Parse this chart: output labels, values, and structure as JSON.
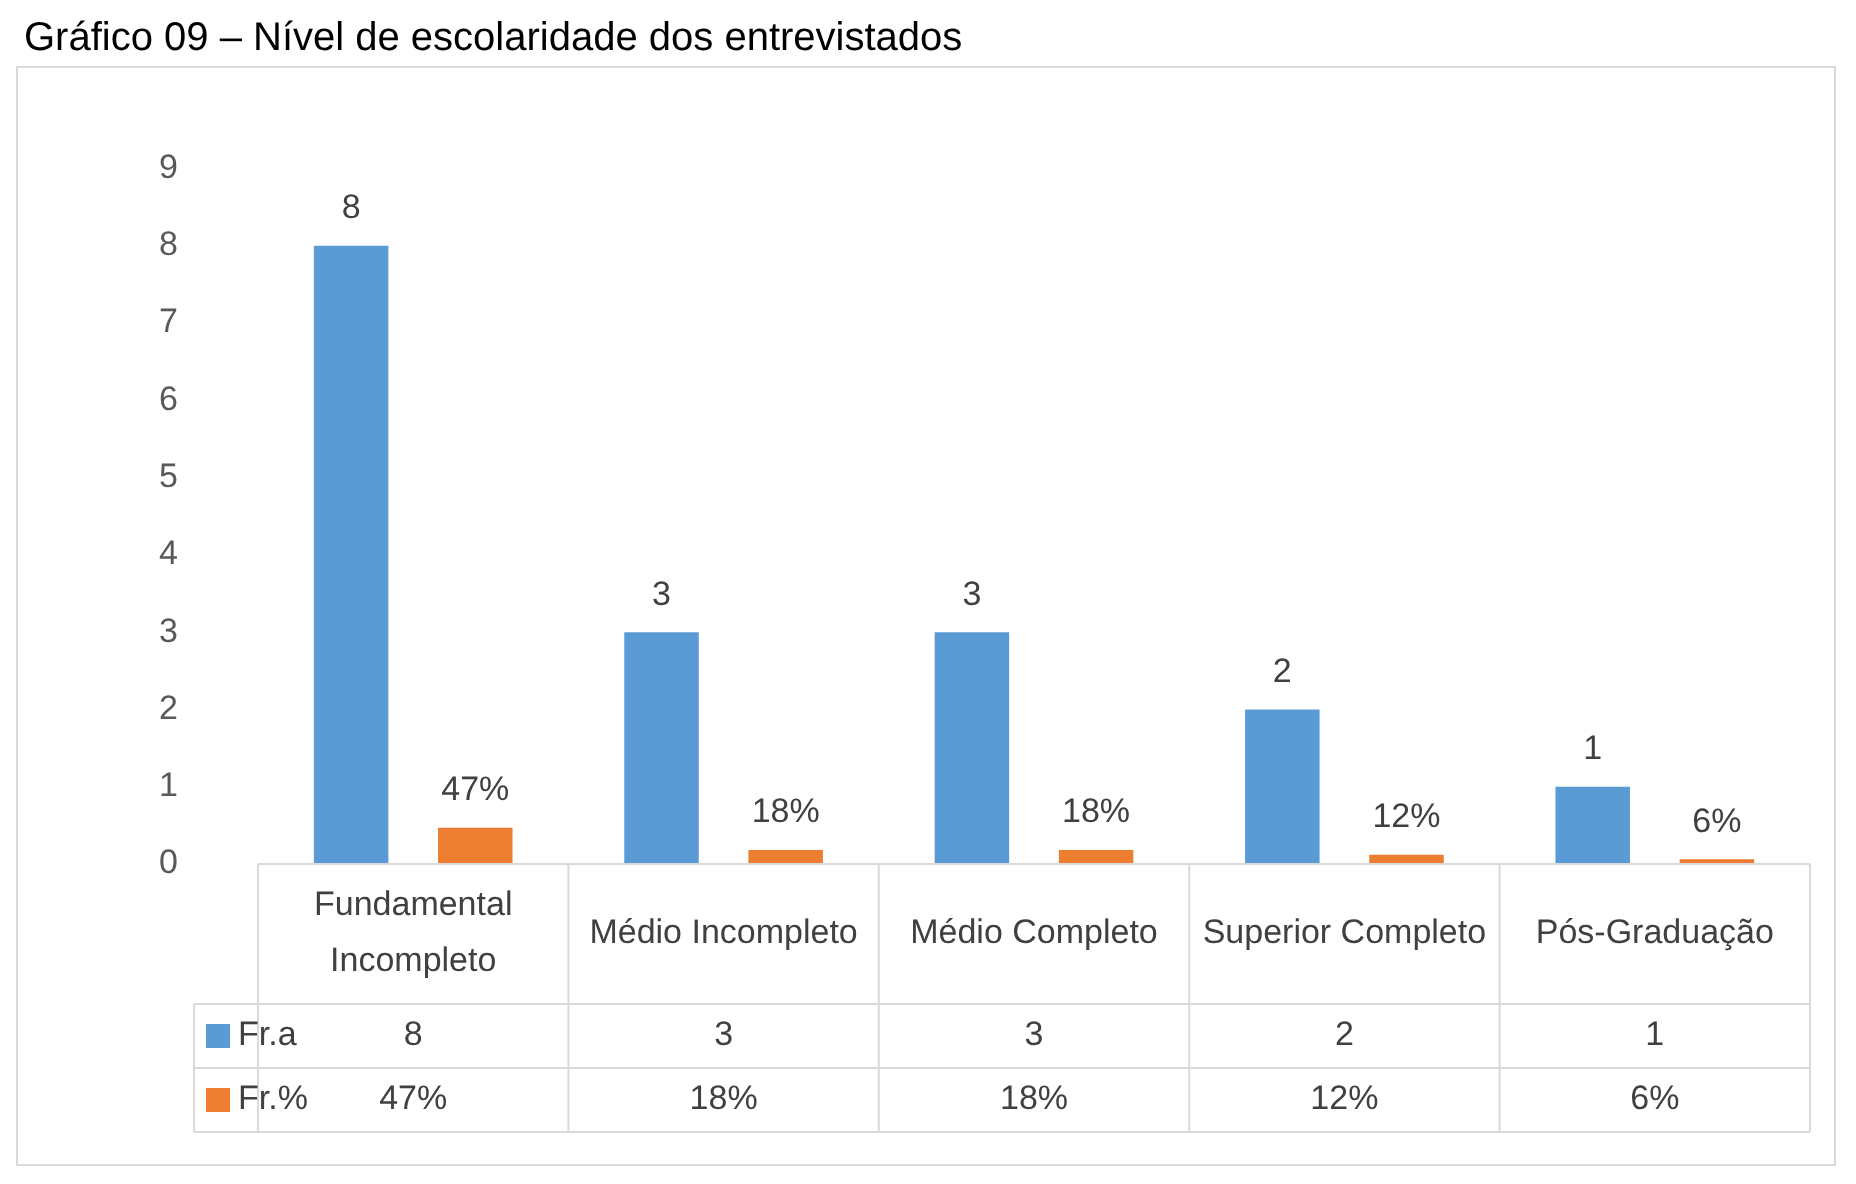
{
  "chart_data": {
    "type": "bar",
    "title": "Gráfico 09 – Nível de escolaridade dos entrevistados",
    "categories": [
      "Fundamental Incompleto",
      "Médio Incompleto",
      "Médio Completo",
      "Superior Completo",
      "Pós-Graduação"
    ],
    "series": [
      {
        "name": "Fr.a",
        "color": "#5b9bd5",
        "values": [
          8,
          3,
          3,
          2,
          1
        ],
        "value_labels": [
          "8",
          "3",
          "3",
          "2",
          "1"
        ]
      },
      {
        "name": "Fr.%",
        "color": "#ed7d31",
        "values": [
          0.47,
          0.18,
          0.18,
          0.12,
          0.06
        ],
        "value_labels": [
          "47%",
          "18%",
          "18%",
          "12%",
          "6%"
        ]
      }
    ],
    "ylim": [
      0,
      9
    ],
    "yticks": [
      0,
      1,
      2,
      3,
      4,
      5,
      6,
      7,
      8,
      9
    ],
    "grid": false,
    "legend": "bottom"
  }
}
